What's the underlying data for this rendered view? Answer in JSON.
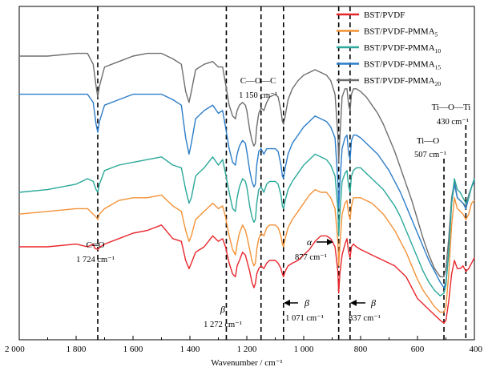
{
  "chart_data": {
    "type": "line",
    "xlabel": "Wavenumber / cm⁻¹",
    "ylabel": "",
    "xlim": [
      2000,
      400
    ],
    "x_reversed": true,
    "x_ticks": [
      2000,
      1800,
      1600,
      1400,
      1200,
      1000,
      800,
      600,
      400
    ],
    "x_tick_labels": [
      "2 000",
      "1 800",
      "1 600",
      "1 400",
      "1 200",
      "1 000",
      "800",
      "600",
      "400"
    ],
    "grid": false,
    "legend_position": "top-right",
    "legend": [
      {
        "base": "BST/PVDF",
        "sub": ""
      },
      {
        "base": "BST/PVDF-PMMA",
        "sub": "5"
      },
      {
        "base": "BST/PVDF-PMMA",
        "sub": "10"
      },
      {
        "base": "BST/PVDF-PMMA",
        "sub": "15"
      },
      {
        "base": "BST/PVDF-PMMA",
        "sub": "20"
      }
    ],
    "reference_lines": [
      1724,
      1272,
      1150,
      1071,
      877,
      837,
      507,
      430
    ],
    "annotations": [
      {
        "id": "co",
        "lines": [
          "C═O",
          "1 724 cm⁻¹"
        ]
      },
      {
        "id": "beta1272",
        "lines": [
          "β",
          "1 272 cm⁻¹"
        ]
      },
      {
        "id": "coc",
        "lines": [
          "C—O—C",
          "1 150 cm⁻¹"
        ]
      },
      {
        "id": "beta1071",
        "lines": [
          "β",
          "1 071 cm⁻¹"
        ]
      },
      {
        "id": "alpha877",
        "lines": [
          "α",
          "877 cm⁻¹"
        ]
      },
      {
        "id": "beta837",
        "lines": [
          "β",
          "837 cm⁻¹"
        ]
      },
      {
        "id": "tio",
        "lines": [
          "Ti—O",
          "507 cm⁻¹"
        ]
      },
      {
        "id": "tioti",
        "lines": [
          "Ti—O—Ti",
          "430 cm⁻¹"
        ]
      }
    ],
    "series": [
      {
        "name": "BST/PVDF",
        "color": "#e8262c",
        "x": [
          2000,
          1900,
          1800,
          1760,
          1740,
          1735,
          1724,
          1715,
          1700,
          1650,
          1600,
          1550,
          1500,
          1460,
          1430,
          1415,
          1403,
          1395,
          1380,
          1350,
          1320,
          1300,
          1285,
          1275,
          1262,
          1250,
          1240,
          1234,
          1226,
          1215,
          1205,
          1200,
          1190,
          1182,
          1175,
          1170,
          1165,
          1158,
          1150,
          1140,
          1130,
          1120,
          1100,
          1090,
          1080,
          1075,
          1071,
          1065,
          1055,
          1040,
          1020,
          1000,
          980,
          960,
          940,
          920,
          905,
          890,
          880,
          877,
          873,
          865,
          855,
          848,
          842,
          837,
          832,
          825,
          815,
          800,
          780,
          760,
          740,
          720,
          700,
          680,
          660,
          640,
          620,
          600,
          580,
          560,
          540,
          520,
          507,
          500,
          490,
          480,
          470,
          460,
          450,
          440,
          430,
          420,
          410,
          400
        ],
        "y": [
          0.3,
          0.3,
          0.31,
          0.3,
          0.31,
          0.295,
          0.29,
          0.3,
          0.31,
          0.33,
          0.35,
          0.36,
          0.38,
          0.33,
          0.32,
          0.25,
          0.22,
          0.24,
          0.28,
          0.3,
          0.34,
          0.32,
          0.33,
          0.3,
          0.24,
          0.2,
          0.19,
          0.23,
          0.25,
          0.28,
          0.27,
          0.25,
          0.21,
          0.17,
          0.15,
          0.165,
          0.2,
          0.22,
          0.23,
          0.22,
          0.24,
          0.25,
          0.25,
          0.24,
          0.22,
          0.2,
          0.19,
          0.21,
          0.23,
          0.24,
          0.25,
          0.27,
          0.29,
          0.32,
          0.34,
          0.34,
          0.33,
          0.3,
          0.21,
          0.13,
          0.2,
          0.27,
          0.31,
          0.33,
          0.28,
          0.26,
          0.3,
          0.31,
          0.3,
          0.29,
          0.28,
          0.27,
          0.26,
          0.25,
          0.24,
          0.23,
          0.21,
          0.19,
          0.15,
          0.11,
          0.09,
          0.07,
          0.05,
          0.03,
          0.02,
          0.03,
          0.1,
          0.2,
          0.25,
          0.22,
          0.22,
          0.23,
          0.21,
          0.22,
          0.24,
          0.26
        ]
      },
      {
        "name": "BST/PVDF-PMMA5",
        "color": "#f39237",
        "x": [
          2000,
          1900,
          1800,
          1760,
          1740,
          1730,
          1724,
          1718,
          1700,
          1650,
          1600,
          1550,
          1500,
          1460,
          1430,
          1415,
          1403,
          1395,
          1380,
          1350,
          1320,
          1300,
          1285,
          1275,
          1262,
          1250,
          1240,
          1234,
          1226,
          1215,
          1205,
          1200,
          1190,
          1182,
          1175,
          1170,
          1165,
          1158,
          1150,
          1140,
          1130,
          1120,
          1100,
          1090,
          1080,
          1075,
          1071,
          1065,
          1055,
          1040,
          1020,
          1000,
          980,
          960,
          940,
          920,
          905,
          890,
          880,
          877,
          873,
          865,
          855,
          848,
          842,
          837,
          832,
          825,
          815,
          800,
          780,
          760,
          740,
          720,
          700,
          680,
          660,
          640,
          620,
          600,
          580,
          560,
          540,
          520,
          507,
          500,
          490,
          480,
          470,
          460,
          450,
          440,
          430,
          420,
          410,
          400
        ],
        "y": [
          0.42,
          0.43,
          0.44,
          0.44,
          0.42,
          0.41,
          0.4,
          0.42,
          0.44,
          0.47,
          0.48,
          0.48,
          0.49,
          0.45,
          0.43,
          0.36,
          0.32,
          0.34,
          0.4,
          0.43,
          0.46,
          0.44,
          0.45,
          0.41,
          0.34,
          0.29,
          0.27,
          0.31,
          0.35,
          0.38,
          0.36,
          0.34,
          0.29,
          0.25,
          0.23,
          0.24,
          0.29,
          0.33,
          0.35,
          0.34,
          0.37,
          0.38,
          0.38,
          0.37,
          0.34,
          0.31,
          0.3,
          0.33,
          0.37,
          0.4,
          0.43,
          0.46,
          0.49,
          0.51,
          0.5,
          0.5,
          0.48,
          0.44,
          0.32,
          0.23,
          0.3,
          0.42,
          0.46,
          0.47,
          0.42,
          0.4,
          0.45,
          0.48,
          0.48,
          0.48,
          0.47,
          0.46,
          0.44,
          0.42,
          0.39,
          0.36,
          0.32,
          0.28,
          0.23,
          0.18,
          0.14,
          0.11,
          0.08,
          0.06,
          0.06,
          0.08,
          0.2,
          0.38,
          0.48,
          0.44,
          0.43,
          0.42,
          0.4,
          0.42,
          0.46,
          0.47
        ]
      },
      {
        "name": "BST/PVDF-PMMA10",
        "color": "#2aa89a",
        "x": [
          2000,
          1900,
          1800,
          1760,
          1740,
          1730,
          1724,
          1718,
          1700,
          1650,
          1600,
          1550,
          1500,
          1460,
          1430,
          1415,
          1403,
          1395,
          1380,
          1350,
          1320,
          1300,
          1285,
          1275,
          1262,
          1250,
          1240,
          1234,
          1226,
          1215,
          1205,
          1200,
          1190,
          1182,
          1175,
          1170,
          1165,
          1158,
          1150,
          1140,
          1130,
          1120,
          1100,
          1090,
          1080,
          1075,
          1071,
          1065,
          1055,
          1040,
          1020,
          1000,
          980,
          960,
          940,
          920,
          905,
          890,
          880,
          877,
          873,
          865,
          855,
          848,
          842,
          837,
          832,
          825,
          815,
          800,
          780,
          760,
          740,
          720,
          700,
          680,
          660,
          640,
          620,
          600,
          580,
          560,
          540,
          520,
          507,
          500,
          490,
          480,
          470,
          460,
          450,
          440,
          430,
          420,
          410,
          400
        ],
        "y": [
          0.5,
          0.51,
          0.53,
          0.55,
          0.54,
          0.51,
          0.5,
          0.53,
          0.58,
          0.6,
          0.61,
          0.62,
          0.63,
          0.6,
          0.59,
          0.51,
          0.46,
          0.48,
          0.56,
          0.59,
          0.63,
          0.6,
          0.62,
          0.57,
          0.5,
          0.44,
          0.43,
          0.48,
          0.52,
          0.55,
          0.54,
          0.52,
          0.45,
          0.41,
          0.39,
          0.4,
          0.46,
          0.51,
          0.52,
          0.5,
          0.53,
          0.54,
          0.54,
          0.53,
          0.49,
          0.45,
          0.44,
          0.47,
          0.51,
          0.54,
          0.57,
          0.6,
          0.62,
          0.64,
          0.63,
          0.62,
          0.6,
          0.56,
          0.44,
          0.34,
          0.42,
          0.54,
          0.57,
          0.58,
          0.52,
          0.5,
          0.56,
          0.58,
          0.59,
          0.59,
          0.57,
          0.55,
          0.53,
          0.51,
          0.48,
          0.45,
          0.41,
          0.36,
          0.31,
          0.26,
          0.21,
          0.17,
          0.14,
          0.12,
          0.13,
          0.16,
          0.28,
          0.46,
          0.55,
          0.51,
          0.5,
          0.48,
          0.46,
          0.48,
          0.52,
          0.55
        ]
      },
      {
        "name": "BST/PVDF-PMMA15",
        "color": "#2d7dc8",
        "x": [
          2000,
          1900,
          1800,
          1760,
          1740,
          1730,
          1724,
          1718,
          1700,
          1650,
          1600,
          1550,
          1500,
          1460,
          1430,
          1415,
          1403,
          1395,
          1380,
          1350,
          1320,
          1300,
          1285,
          1275,
          1262,
          1250,
          1240,
          1234,
          1226,
          1215,
          1205,
          1200,
          1190,
          1182,
          1175,
          1170,
          1165,
          1158,
          1150,
          1140,
          1130,
          1120,
          1100,
          1090,
          1080,
          1075,
          1071,
          1065,
          1055,
          1040,
          1020,
          1000,
          980,
          960,
          940,
          920,
          905,
          890,
          880,
          877,
          873,
          865,
          855,
          848,
          842,
          837,
          832,
          825,
          815,
          800,
          780,
          760,
          740,
          720,
          700,
          680,
          660,
          640,
          620,
          600,
          580,
          560,
          540,
          520,
          507,
          500,
          490,
          480,
          470,
          460,
          450,
          440,
          430,
          420,
          410,
          400
        ],
        "y": [
          0.86,
          0.86,
          0.86,
          0.86,
          0.83,
          0.75,
          0.72,
          0.76,
          0.82,
          0.84,
          0.86,
          0.86,
          0.86,
          0.84,
          0.82,
          0.7,
          0.64,
          0.68,
          0.77,
          0.8,
          0.82,
          0.79,
          0.8,
          0.74,
          0.66,
          0.61,
          0.6,
          0.64,
          0.67,
          0.69,
          0.68,
          0.65,
          0.58,
          0.54,
          0.52,
          0.53,
          0.6,
          0.65,
          0.66,
          0.64,
          0.66,
          0.66,
          0.66,
          0.65,
          0.6,
          0.56,
          0.55,
          0.59,
          0.64,
          0.68,
          0.71,
          0.74,
          0.76,
          0.78,
          0.77,
          0.76,
          0.74,
          0.7,
          0.54,
          0.44,
          0.53,
          0.66,
          0.7,
          0.71,
          0.64,
          0.62,
          0.69,
          0.71,
          0.71,
          0.7,
          0.68,
          0.66,
          0.64,
          0.61,
          0.58,
          0.54,
          0.5,
          0.45,
          0.4,
          0.35,
          0.3,
          0.25,
          0.21,
          0.17,
          0.15,
          0.17,
          0.28,
          0.46,
          0.53,
          0.48,
          0.47,
          0.46,
          0.44,
          0.48,
          0.52,
          0.54
        ]
      },
      {
        "name": "BST/PVDF-PMMA20",
        "color": "#6e6e6e",
        "x": [
          2000,
          1900,
          1800,
          1760,
          1740,
          1730,
          1724,
          1718,
          1700,
          1650,
          1600,
          1550,
          1500,
          1460,
          1430,
          1415,
          1403,
          1395,
          1380,
          1350,
          1320,
          1300,
          1285,
          1275,
          1262,
          1250,
          1240,
          1234,
          1226,
          1215,
          1205,
          1200,
          1190,
          1182,
          1175,
          1170,
          1165,
          1158,
          1150,
          1140,
          1130,
          1120,
          1100,
          1090,
          1080,
          1075,
          1071,
          1065,
          1055,
          1040,
          1020,
          1000,
          980,
          960,
          940,
          920,
          905,
          890,
          880,
          877,
          873,
          865,
          855,
          848,
          842,
          837,
          832,
          825,
          815,
          800,
          780,
          760,
          740,
          720,
          700,
          680,
          660,
          640,
          620,
          600,
          580,
          560,
          540,
          520,
          507,
          500,
          490,
          480,
          470,
          460,
          450,
          440,
          430,
          420,
          410,
          400
        ],
        "y": [
          1.0,
          1.0,
          1.01,
          1.01,
          0.97,
          0.89,
          0.85,
          0.89,
          0.96,
          0.98,
          1.0,
          1.01,
          1.01,
          0.99,
          0.97,
          0.87,
          0.83,
          0.87,
          0.95,
          0.97,
          0.98,
          0.96,
          0.96,
          0.9,
          0.82,
          0.78,
          0.77,
          0.8,
          0.82,
          0.83,
          0.82,
          0.8,
          0.73,
          0.69,
          0.67,
          0.68,
          0.74,
          0.79,
          0.81,
          0.8,
          0.83,
          0.85,
          0.86,
          0.85,
          0.8,
          0.76,
          0.75,
          0.78,
          0.84,
          0.88,
          0.91,
          0.93,
          0.94,
          0.95,
          0.94,
          0.93,
          0.91,
          0.86,
          0.71,
          0.61,
          0.7,
          0.85,
          0.88,
          0.88,
          0.82,
          0.8,
          0.86,
          0.88,
          0.88,
          0.87,
          0.85,
          0.82,
          0.79,
          0.75,
          0.7,
          0.65,
          0.59,
          0.53,
          0.47,
          0.4,
          0.33,
          0.27,
          0.22,
          0.19,
          0.19,
          0.22,
          0.33,
          0.48,
          0.54,
          0.48,
          0.47,
          0.46,
          0.45,
          0.49,
          0.52,
          0.55
        ]
      }
    ]
  }
}
